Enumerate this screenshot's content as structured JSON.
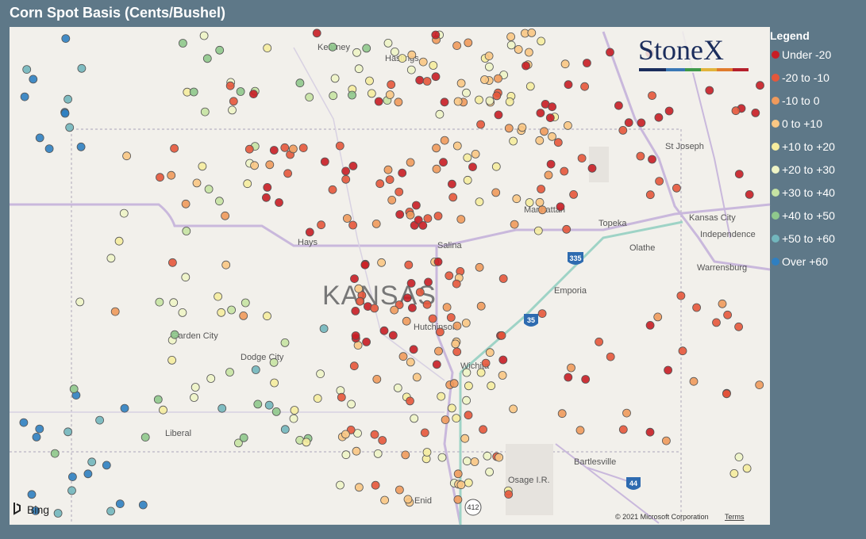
{
  "title": "Corn Spot Basis (Cents/Bushel)",
  "legend": {
    "title": "Legend",
    "items": [
      {
        "label": "Under -20",
        "color": "#c81d25"
      },
      {
        "label": "-20 to -10",
        "color": "#e5573b"
      },
      {
        "label": "-10 to 0",
        "color": "#f09a5c"
      },
      {
        "label": "0 to +10",
        "color": "#f9c784"
      },
      {
        "label": "+10 to +20",
        "color": "#f5ec9e"
      },
      {
        "label": "+20 to +30",
        "color": "#eef4c6"
      },
      {
        "label": "+30 to +40",
        "color": "#c6e3a3"
      },
      {
        "label": "+40 to +50",
        "color": "#8fc88c"
      },
      {
        "label": "+50 to +60",
        "color": "#72b6bd"
      },
      {
        "label": "Over +60",
        "color": "#2f7fc1"
      }
    ]
  },
  "map": {
    "labels": [
      "Kearney",
      "Hastings",
      "St Joseph",
      "Manhattan",
      "Topeka",
      "Kansas City",
      "Independence",
      "Hays",
      "Salina",
      "Olathe",
      "Warrensburg",
      "Emporia",
      "Garden City",
      "Dodge City",
      "Hutchinson",
      "Wichita",
      "Liberal",
      "Bartlesville",
      "Osage I.R.",
      "Enid"
    ],
    "state_label": "KANSAS",
    "shields": [
      "335",
      "35",
      "44",
      "412"
    ],
    "provider": "Bing",
    "attribution": "© 2021 Microsoft Corporation",
    "terms": "Terms",
    "logo": "StoneX"
  }
}
